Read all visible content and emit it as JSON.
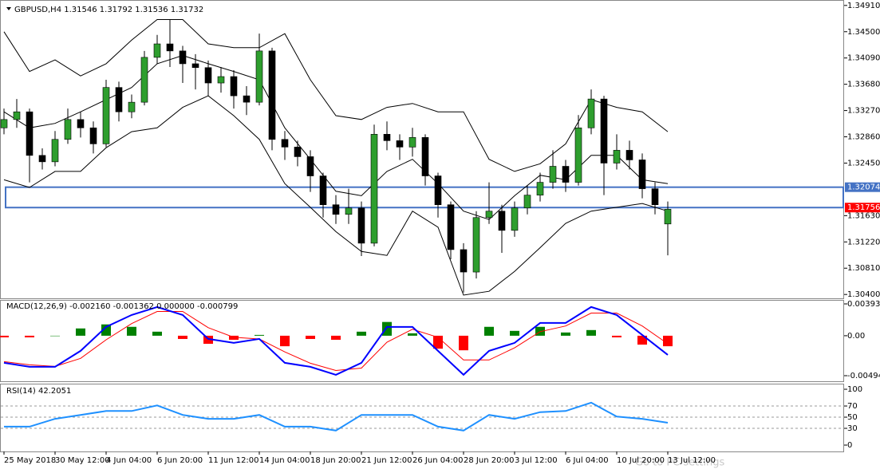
{
  "chart_data": [
    {
      "type": "candlestick",
      "title": "GBPUSD,H4  1.31546 1.31792 1.31536 1.31732",
      "x": [
        0,
        4,
        8,
        12,
        16,
        20,
        24,
        28,
        32,
        36,
        40,
        44,
        48,
        52,
        56,
        60,
        64,
        68,
        72,
        76,
        80,
        84,
        88,
        92,
        96,
        100,
        104,
        108,
        112,
        116,
        120,
        124,
        128,
        132,
        136,
        140,
        144,
        148,
        152,
        156,
        160,
        164,
        168,
        172,
        176,
        180,
        184,
        188,
        192,
        196,
        200,
        204,
        208
      ],
      "open": [
        1.33,
        1.3313,
        1.3325,
        1.3257,
        1.3247,
        1.3282,
        1.3313,
        1.33,
        1.3275,
        1.3363,
        1.3325,
        1.334,
        1.341,
        1.3431,
        1.342,
        1.34,
        1.3394,
        1.337,
        1.338,
        1.335,
        1.334,
        1.342,
        1.3282,
        1.327,
        1.3255,
        1.3225,
        1.318,
        1.3165,
        1.3175,
        1.312,
        1.329,
        1.328,
        1.327,
        1.3285,
        1.3225,
        1.318,
        1.311,
        1.3075,
        1.316,
        1.317,
        1.314,
        1.3175,
        1.3195,
        1.3215,
        1.324,
        1.3215,
        1.33,
        1.3345,
        1.3245,
        1.3265,
        1.325,
        1.3205,
        1.315
      ],
      "high": [
        1.333,
        1.3345,
        1.333,
        1.3268,
        1.3295,
        1.333,
        1.3325,
        1.331,
        1.3375,
        1.3372,
        1.3352,
        1.342,
        1.3445,
        1.3469,
        1.3428,
        1.3415,
        1.3405,
        1.3395,
        1.339,
        1.3365,
        1.3447,
        1.3425,
        1.3295,
        1.328,
        1.3265,
        1.323,
        1.3195,
        1.3205,
        1.3185,
        1.3305,
        1.331,
        1.329,
        1.33,
        1.329,
        1.323,
        1.3185,
        1.312,
        1.317,
        1.3215,
        1.318,
        1.3185,
        1.321,
        1.323,
        1.3265,
        1.325,
        1.332,
        1.336,
        1.335,
        1.329,
        1.328,
        1.326,
        1.3215,
        1.3185
      ],
      "low": [
        1.329,
        1.33,
        1.3215,
        1.3235,
        1.324,
        1.3275,
        1.3285,
        1.326,
        1.327,
        1.331,
        1.3315,
        1.3335,
        1.34,
        1.3395,
        1.337,
        1.336,
        1.335,
        1.3355,
        1.333,
        1.332,
        1.3335,
        1.3265,
        1.325,
        1.324,
        1.32,
        1.316,
        1.315,
        1.315,
        1.31,
        1.3115,
        1.3265,
        1.325,
        1.3255,
        1.321,
        1.316,
        1.3095,
        1.3043,
        1.3065,
        1.315,
        1.3105,
        1.313,
        1.3165,
        1.3185,
        1.3205,
        1.32,
        1.321,
        1.329,
        1.3195,
        1.3235,
        1.3235,
        1.319,
        1.3165,
        1.3101
      ],
      "close": [
        1.3313,
        1.3325,
        1.3257,
        1.3247,
        1.3282,
        1.3313,
        1.33,
        1.3275,
        1.3363,
        1.3325,
        1.334,
        1.341,
        1.3431,
        1.342,
        1.34,
        1.3394,
        1.337,
        1.338,
        1.335,
        1.334,
        1.342,
        1.3282,
        1.327,
        1.3255,
        1.3225,
        1.318,
        1.3165,
        1.3175,
        1.312,
        1.329,
        1.328,
        1.327,
        1.3285,
        1.3225,
        1.318,
        1.311,
        1.3075,
        1.316,
        1.317,
        1.314,
        1.3175,
        1.3195,
        1.3215,
        1.324,
        1.3215,
        1.33,
        1.3345,
        1.3245,
        1.3265,
        1.325,
        1.3205,
        1.318,
        1.3173
      ],
      "up_color": "#2e9e2e",
      "down_color": "#000000",
      "bands": {
        "x": [
          0,
          8,
          16,
          24,
          32,
          40,
          48,
          56,
          64,
          72,
          80,
          88,
          96,
          104,
          112,
          120,
          128,
          136,
          144,
          152,
          160,
          168,
          176,
          184,
          192,
          200,
          208
        ],
        "upper": [
          1.345,
          1.3388,
          1.3406,
          1.3381,
          1.34,
          1.3437,
          1.3469,
          1.3469,
          1.3431,
          1.3425,
          1.3425,
          1.3447,
          1.3375,
          1.3319,
          1.3313,
          1.3332,
          1.3338,
          1.3325,
          1.3325,
          1.3251,
          1.3232,
          1.3244,
          1.3275,
          1.3344,
          1.3332,
          1.3325,
          1.3294
        ],
        "middle": [
          1.3325,
          1.33,
          1.3307,
          1.3325,
          1.3344,
          1.3363,
          1.34,
          1.3413,
          1.34,
          1.3388,
          1.3375,
          1.33,
          1.3251,
          1.3201,
          1.3194,
          1.3232,
          1.3251,
          1.3213,
          1.317,
          1.3157,
          1.3194,
          1.3226,
          1.3219,
          1.3257,
          1.3257,
          1.3219,
          1.3213
        ],
        "lower": [
          1.3219,
          1.3207,
          1.3232,
          1.3232,
          1.3269,
          1.3294,
          1.33,
          1.3332,
          1.335,
          1.3319,
          1.3282,
          1.3213,
          1.3176,
          1.3138,
          1.3107,
          1.3101,
          1.317,
          1.3145,
          1.3039,
          1.3045,
          1.3076,
          1.3113,
          1.3151,
          1.317,
          1.3176,
          1.3182,
          1.317
        ],
        "color": "#000000"
      },
      "zone": {
        "top": 1.32074,
        "bottom": 1.31756,
        "color": "#4472c4",
        "top_color": "#4472c4",
        "bottom_color": "#ff0000"
      },
      "xlim": [
        -1.25,
        263.25
      ],
      "xticks": [
        {
          "value": 0,
          "label": "25 May 2018"
        },
        {
          "value": 16,
          "label": "30 May 12:00"
        },
        {
          "value": 32,
          "label": "4 Jun 04:00"
        },
        {
          "value": 48,
          "label": "6 Jun 20:00"
        },
        {
          "value": 64,
          "label": "11 Jun 12:00"
        },
        {
          "value": 80,
          "label": "14 Jun 04:00"
        },
        {
          "value": 96,
          "label": "18 Jun 20:00"
        },
        {
          "value": 112,
          "label": "21 Jun 12:00"
        },
        {
          "value": 128,
          "label": "26 Jun 04:00"
        },
        {
          "value": 144,
          "label": "28 Jun 20:00"
        },
        {
          "value": 160,
          "label": "3 Jul 12:00"
        },
        {
          "value": 176,
          "label": "6 Jul 04:00"
        },
        {
          "value": 192,
          "label": "10 Jul 20:00"
        },
        {
          "value": 208,
          "label": "13 Jul 12:00"
        }
      ],
      "ylim": [
        1.3034,
        1.3497
      ],
      "yticks": [
        {
          "value": 1.3491,
          "label": "1.34910"
        },
        {
          "value": 1.345,
          "label": "1.34500"
        },
        {
          "value": 1.3409,
          "label": "1.34090"
        },
        {
          "value": 1.3368,
          "label": "1.33680"
        },
        {
          "value": 1.3327,
          "label": "1.33270"
        },
        {
          "value": 1.3286,
          "label": "1.32860"
        },
        {
          "value": 1.3245,
          "label": "1.32450"
        },
        {
          "value": 1.3163,
          "label": "1.31630"
        },
        {
          "value": 1.3122,
          "label": "1.31220"
        },
        {
          "value": 1.3081,
          "label": "1.30810"
        },
        {
          "value": 1.304,
          "label": "1.30400"
        }
      ],
      "watermark": "Go to PC settings"
    },
    {
      "type": "macd",
      "title": "MACD(12,26,9) -0.002160 -0.001362 0.000000 -0.000799",
      "x": [
        0,
        8,
        16,
        24,
        32,
        40,
        48,
        56,
        64,
        72,
        80,
        88,
        96,
        104,
        112,
        120,
        128,
        136,
        144,
        152,
        160,
        168,
        176,
        184,
        192,
        200,
        208
      ],
      "histogram": {
        "values": [
          -0.0002,
          -0.0002,
          0.0,
          0.0009,
          0.0014,
          0.0011,
          0.0005,
          -0.0004,
          -0.001,
          -0.0005,
          0.0001,
          -0.0013,
          -0.0004,
          -0.0005,
          0.0005,
          0.0017,
          0.0003,
          -0.0016,
          -0.0018,
          0.0011,
          0.0006,
          0.0011,
          0.0004,
          0.0007,
          -0.0002,
          -0.0011,
          -0.0013
        ],
        "color": "#008000",
        "negative_color": "#ff0000"
      },
      "macd": {
        "values": [
          -0.00335,
          -0.00385,
          -0.00385,
          -0.00187,
          0.00109,
          0.00256,
          0.00355,
          0.00256,
          -0.00039,
          -0.00089,
          -0.00039,
          -0.00335,
          -0.00385,
          -0.00483,
          -0.00335,
          0.00109,
          0.00109,
          -0.00187,
          -0.00483,
          -0.00187,
          -0.00089,
          0.00158,
          0.00158,
          0.00355,
          0.00256,
          0.0001,
          -0.00237
        ],
        "color": "#0000ff"
      },
      "signal": {
        "values": [
          -0.0032,
          -0.0036,
          -0.0038,
          -0.0028,
          -0.0005,
          0.0015,
          0.003,
          0.003,
          0.001,
          -0.0002,
          -0.0004,
          -0.002,
          -0.0034,
          -0.0043,
          -0.004,
          -0.0008,
          0.0008,
          -0.0002,
          -0.003,
          -0.003,
          -0.0015,
          0.0005,
          0.0012,
          0.0028,
          0.0028,
          0.0012,
          -0.001
        ],
        "color": "#ff0000"
      },
      "ylim": [
        -0.00563,
        0.00433
      ],
      "yticks": [
        0.003935,
        {
          "value": 0,
          "label": "0.00"
        },
        -0.00494
      ]
    },
    {
      "type": "rsi",
      "title": "RSI(14) 42.2051",
      "x": [
        0,
        8,
        16,
        24,
        32,
        40,
        48,
        56,
        64,
        72,
        80,
        88,
        96,
        104,
        112,
        120,
        128,
        136,
        144,
        152,
        160,
        168,
        176,
        184,
        192,
        200,
        208
      ],
      "values": [
        33,
        33,
        47,
        54,
        61,
        61,
        71,
        54,
        47,
        47,
        54,
        33,
        33,
        26,
        54,
        54,
        54,
        33,
        26,
        54,
        47,
        59,
        61,
        76,
        51,
        47,
        40
      ],
      "color": "#1e90ff",
      "levels": [
        70,
        50,
        30
      ],
      "ylim": [
        -11.4,
        108.6
      ],
      "yticks": [
        100,
        70,
        50,
        30,
        0
      ]
    }
  ]
}
